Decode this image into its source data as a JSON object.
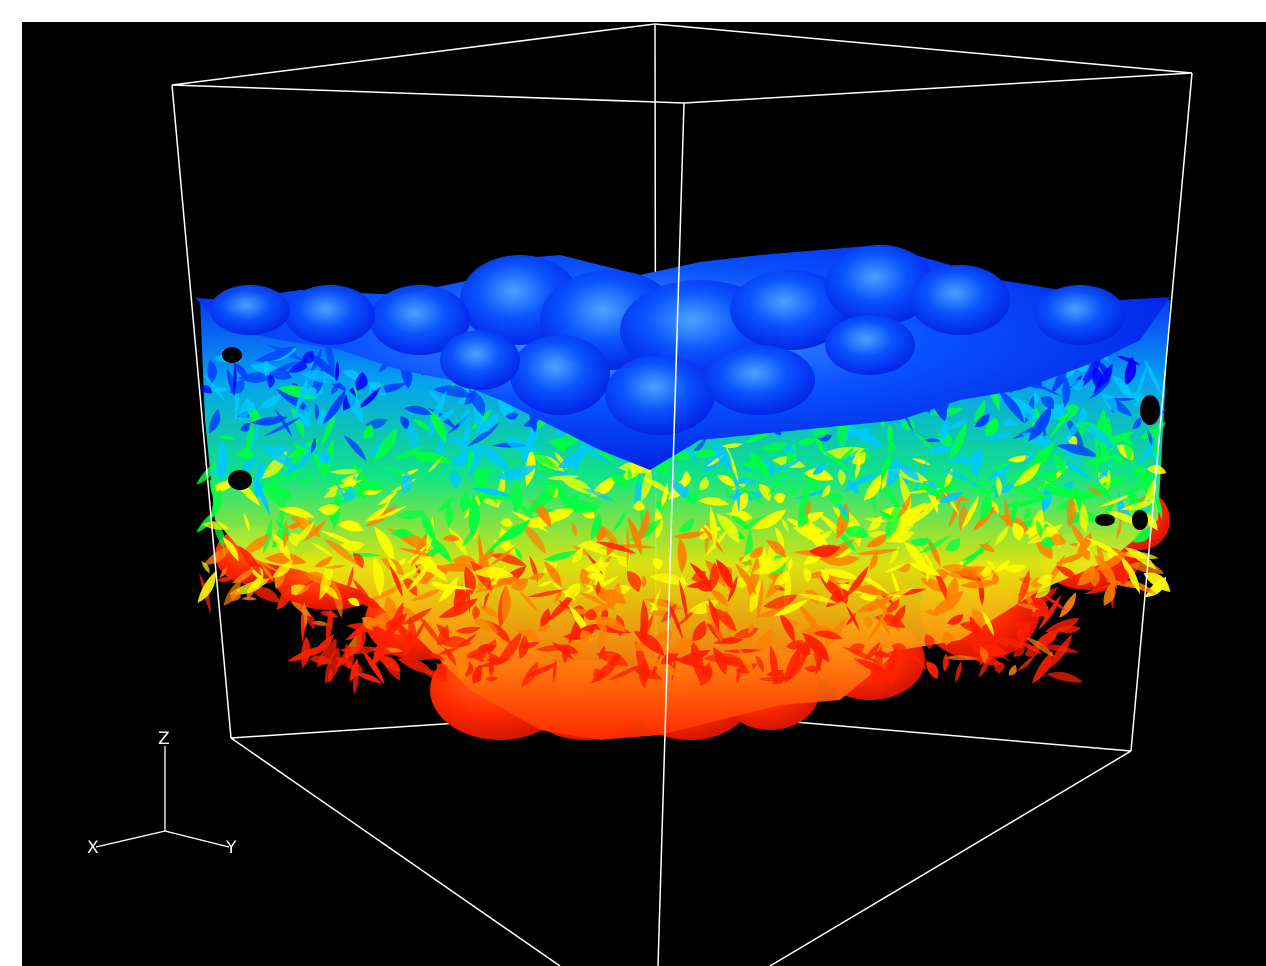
{
  "viewer": {
    "background": "#000000",
    "bounding_box_color": "#ffffff"
  },
  "orientation_axes": {
    "x_label": "X",
    "y_label": "Y",
    "z_label": "Z"
  },
  "isosurface": {
    "colormap": [
      "#0000ff",
      "#0040ff",
      "#00c8ff",
      "#00ff40",
      "#ffff00",
      "#ff8000",
      "#ff2000"
    ],
    "top_color": "#0a4dff",
    "bottom_color": "#ff2a00"
  }
}
